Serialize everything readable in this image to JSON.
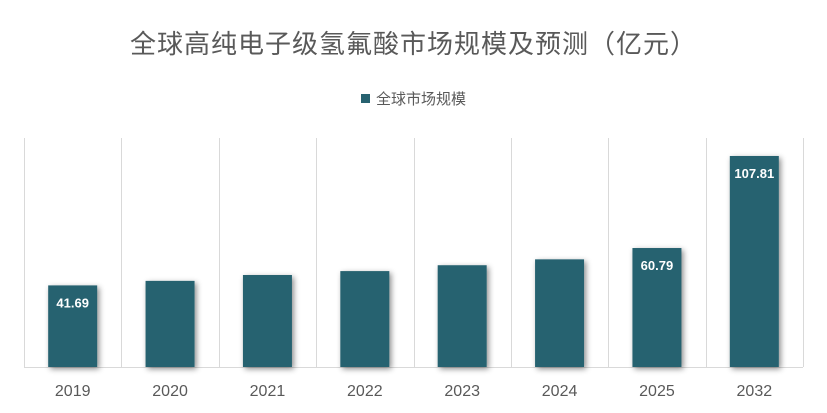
{
  "chart_data": {
    "type": "bar",
    "title": "全球高纯电子级氢氟酸市场规模及预测（亿元）",
    "categories": [
      "2019",
      "2020",
      "2021",
      "2022",
      "2023",
      "2024",
      "2025",
      "2032"
    ],
    "series": [
      {
        "name": "全球市场规模",
        "values": [
          41.69,
          44.0,
          47.0,
          49.0,
          52.0,
          55.0,
          60.79,
          107.81
        ],
        "data_labels": [
          "41.69",
          "",
          "",
          "",
          "",
          "",
          "60.79",
          "107.81"
        ]
      }
    ],
    "ylim": [
      0,
      117
    ],
    "grid": "vertical category separators",
    "legend_position": "top",
    "colors": {
      "bar": "#276270",
      "grid": "#d9d9d9",
      "axis_text": "#595959",
      "data_label": "#ffffff"
    }
  }
}
